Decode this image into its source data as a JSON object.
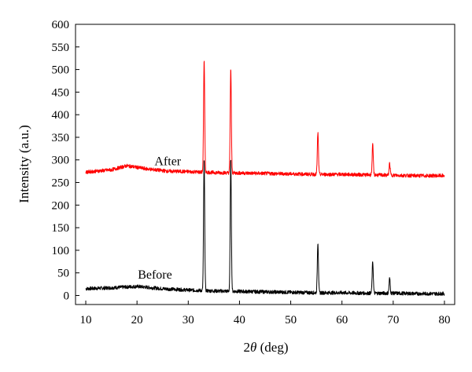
{
  "chart_data": {
    "type": "line",
    "title": "",
    "xlabel_prefix": "2",
    "xlabel_symbol": "θ",
    "xlabel_suffix": " (deg)",
    "ylabel": "Intensity (a.u.)",
    "xlim": [
      8,
      82
    ],
    "ylim": [
      -20,
      600
    ],
    "xticks": [
      10,
      20,
      30,
      40,
      50,
      60,
      70,
      80
    ],
    "yticks": [
      0,
      50,
      100,
      150,
      200,
      250,
      300,
      350,
      400,
      450,
      500,
      550,
      600
    ],
    "grid": false,
    "legend": "none",
    "series": [
      {
        "name": "After",
        "color": "#ff0000",
        "baseline": [
          [
            10,
            273
          ],
          [
            15,
            278
          ],
          [
            18,
            287
          ],
          [
            22,
            280
          ],
          [
            26,
            275
          ],
          [
            30,
            274
          ],
          [
            35,
            272
          ],
          [
            40,
            271
          ],
          [
            45,
            270
          ],
          [
            50,
            269
          ],
          [
            55,
            268
          ],
          [
            60,
            268
          ],
          [
            65,
            267
          ],
          [
            70,
            266
          ],
          [
            75,
            265
          ],
          [
            80,
            265
          ]
        ],
        "noise": 4,
        "peaks": [
          {
            "x": 33.1,
            "y": 520
          },
          {
            "x": 38.3,
            "y": 502
          },
          {
            "x": 55.3,
            "y": 360
          },
          {
            "x": 66.0,
            "y": 333
          },
          {
            "x": 69.3,
            "y": 292
          }
        ]
      },
      {
        "name": "Before",
        "color": "#000000",
        "baseline": [
          [
            10,
            15
          ],
          [
            15,
            17
          ],
          [
            20,
            20
          ],
          [
            25,
            15
          ],
          [
            30,
            12
          ],
          [
            35,
            10
          ],
          [
            40,
            9
          ],
          [
            45,
            8
          ],
          [
            50,
            7
          ],
          [
            55,
            6
          ],
          [
            60,
            6
          ],
          [
            65,
            5
          ],
          [
            70,
            5
          ],
          [
            75,
            4
          ],
          [
            80,
            4
          ]
        ],
        "noise": 4,
        "peaks": [
          {
            "x": 33.1,
            "y": 300
          },
          {
            "x": 38.3,
            "y": 300
          },
          {
            "x": 55.3,
            "y": 118
          },
          {
            "x": 66.0,
            "y": 75
          },
          {
            "x": 69.3,
            "y": 38
          }
        ]
      }
    ],
    "annotations": [
      {
        "text": "After",
        "x": 26,
        "y": 288
      },
      {
        "text": "Before",
        "x": 23.5,
        "y": 37
      }
    ]
  }
}
